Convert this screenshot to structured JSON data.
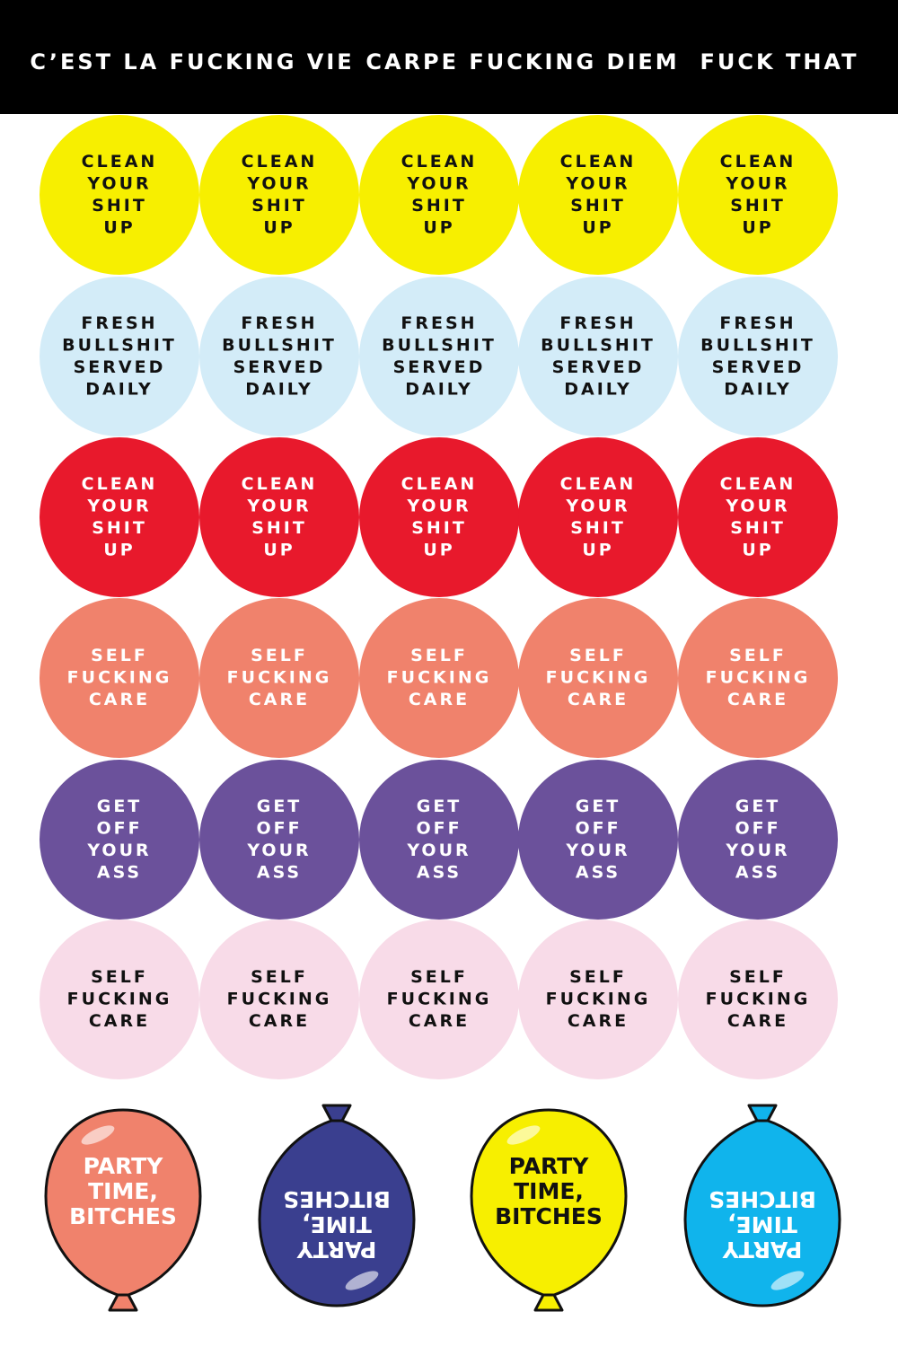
{
  "header": {
    "items": [
      "C’EST LA FUCKING VIE",
      "CARPE FUCKING DIEM",
      "FUCK THAT"
    ]
  },
  "sticker_rows": [
    {
      "stickers": [
        [
          "CLEAN",
          "YOUR",
          "SHIT",
          "UP"
        ],
        [
          "CLEAN",
          "YOUR",
          "SHIT",
          "UP"
        ],
        [
          "CLEAN",
          "YOUR",
          "SHIT",
          "UP"
        ],
        [
          "CLEAN",
          "YOUR",
          "SHIT",
          "UP"
        ],
        [
          "CLEAN",
          "YOUR",
          "SHIT",
          "UP"
        ]
      ]
    },
    {
      "stickers": [
        [
          "FRESH",
          "BULLSHIT",
          "SERVED",
          "DAILY"
        ],
        [
          "FRESH",
          "BULLSHIT",
          "SERVED",
          "DAILY"
        ],
        [
          "FRESH",
          "BULLSHIT",
          "SERVED",
          "DAILY"
        ],
        [
          "FRESH",
          "BULLSHIT",
          "SERVED",
          "DAILY"
        ],
        [
          "FRESH",
          "BULLSHIT",
          "SERVED",
          "DAILY"
        ]
      ]
    },
    {
      "stickers": [
        [
          "CLEAN",
          "YOUR",
          "SHIT",
          "UP"
        ],
        [
          "CLEAN",
          "YOUR",
          "SHIT",
          "UP"
        ],
        [
          "CLEAN",
          "YOUR",
          "SHIT",
          "UP"
        ],
        [
          "CLEAN",
          "YOUR",
          "SHIT",
          "UP"
        ],
        [
          "CLEAN",
          "YOUR",
          "SHIT",
          "UP"
        ]
      ]
    },
    {
      "stickers": [
        [
          "SELF",
          "FUCKING",
          "CARE"
        ],
        [
          "SELF",
          "FUCKING",
          "CARE"
        ],
        [
          "SELF",
          "FUCKING",
          "CARE"
        ],
        [
          "SELF",
          "FUCKING",
          "CARE"
        ],
        [
          "SELF",
          "FUCKING",
          "CARE"
        ]
      ]
    },
    {
      "stickers": [
        [
          "GET",
          "OFF",
          "YOUR",
          "ASS"
        ],
        [
          "GET",
          "OFF",
          "YOUR",
          "ASS"
        ],
        [
          "GET",
          "OFF",
          "YOUR",
          "ASS"
        ],
        [
          "GET",
          "OFF",
          "YOUR",
          "ASS"
        ],
        [
          "GET",
          "OFF",
          "YOUR",
          "ASS"
        ]
      ]
    },
    {
      "stickers": [
        [
          "SELF",
          "FUCKING",
          "CARE"
        ],
        [
          "SELF",
          "FUCKING",
          "CARE"
        ],
        [
          "SELF",
          "FUCKING",
          "CARE"
        ],
        [
          "SELF",
          "FUCKING",
          "CARE"
        ],
        [
          "SELF",
          "FUCKING",
          "CARE"
        ]
      ]
    }
  ],
  "balloons": [
    [
      "PARTY",
      "TIME,",
      "BITCHES"
    ],
    [
      "PARTY",
      "TIME,",
      "BITCHES"
    ],
    [
      "PARTY",
      "TIME,",
      "BITCHES"
    ],
    [
      "PARTY",
      "TIME,",
      "BITCHES"
    ]
  ]
}
